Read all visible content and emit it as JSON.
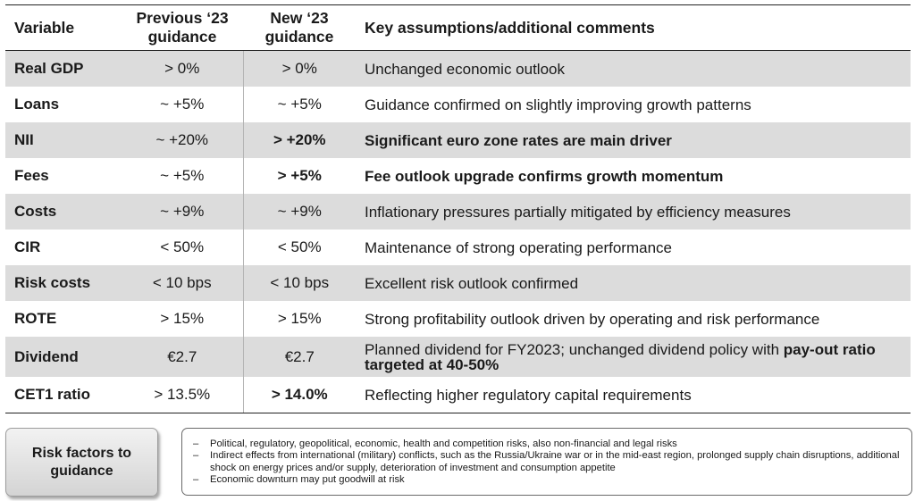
{
  "table": {
    "headers": {
      "variable": "Variable",
      "previous": "Previous ‘23 guidance",
      "new": "New ‘23 guidance",
      "comments": "Key assumptions/additional comments"
    },
    "rows": [
      {
        "variable": "Real GDP",
        "previous": "> 0%",
        "new": "> 0%",
        "comment": "Unchanged economic outlook"
      },
      {
        "variable": "Loans",
        "previous": "~ +5%",
        "new": "~ +5%",
        "comment": "Guidance confirmed on slightly improving growth patterns"
      },
      {
        "variable": "NII",
        "previous": "~ +20%",
        "new": "> +20%",
        "comment": "Significant euro zone rates are main driver"
      },
      {
        "variable": "Fees",
        "previous": "~ +5%",
        "new": "> +5%",
        "comment": "Fee outlook upgrade confirms growth momentum"
      },
      {
        "variable": "Costs",
        "previous": "~ +9%",
        "new": "~ +9%",
        "comment": "Inflationary pressures partially mitigated by efficiency measures"
      },
      {
        "variable": "CIR",
        "previous": "< 50%",
        "new": "< 50%",
        "comment": "Maintenance of strong operating performance"
      },
      {
        "variable": "Risk costs",
        "previous": "< 10 bps",
        "new": "< 10 bps",
        "comment": "Excellent risk outlook confirmed"
      },
      {
        "variable": "ROTE",
        "previous": "> 15%",
        "new": "> 15%",
        "comment": "Strong profitability outlook driven by operating and risk performance"
      },
      {
        "variable": "Dividend",
        "previous": "€2.7",
        "new": "€2.7",
        "comment": "Planned dividend for FY2023; unchanged dividend policy with ",
        "comment_bold": "pay-out ratio targeted at 40-50%"
      },
      {
        "variable": "CET1 ratio",
        "previous": "> 13.5%",
        "new": "> 14.0%",
        "comment": "Reflecting higher regulatory capital requirements"
      }
    ]
  },
  "risk": {
    "label": "Risk factors to guidance",
    "bullet": "–",
    "items": [
      "Political, regulatory, geopolitical, economic, health and competition risks, also non-financial and legal risks",
      "Indirect effects from international (military) conflicts, such as the Russia/Ukraine war or in the mid-east region, prolonged supply chain disruptions, additional shock on energy prices and/or supply, deterioration of investment and consumption appetite",
      "Economic downturn may put goodwill at risk"
    ]
  }
}
